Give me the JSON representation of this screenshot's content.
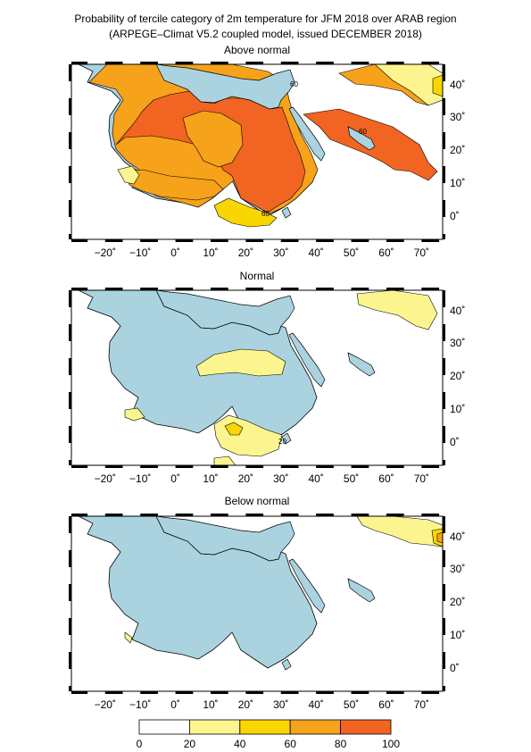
{
  "title": "Probability of tercile category of 2m temperature for JFM 2018 over ARAB region",
  "subtitle": "(ARPEGE–Climat V5.2 coupled model, issued DECEMBER  2018)",
  "lon_ticks": [
    "−20˚",
    "−10˚",
    "0˚",
    "10˚",
    "20˚",
    "30˚",
    "40˚",
    "50˚",
    "60˚",
    "70˚"
  ],
  "lat_ticks": [
    "40˚",
    "30˚",
    "20˚",
    "10˚",
    "0˚"
  ],
  "colors": {
    "ocean": "#aad3df",
    "land": "#ffffff",
    "c20_40": "#fcf58f",
    "c40_60": "#f9d600",
    "c60_80": "#f7a21b",
    "c80_100": "#f26422"
  },
  "panels": [
    {
      "name": "above-normal",
      "title": "Above normal",
      "contour_labels": [
        "60",
        "60",
        "60"
      ]
    },
    {
      "name": "normal",
      "title": "Normal",
      "contour_labels": [
        "20"
      ]
    },
    {
      "name": "below-normal",
      "title": "Below normal",
      "contour_labels": []
    }
  ],
  "colorbar": {
    "ticks": [
      "0",
      "20",
      "40",
      "60",
      "80",
      "100"
    ],
    "bins": [
      {
        "from": 0,
        "to": 20,
        "color": "#ffffff"
      },
      {
        "from": 20,
        "to": 40,
        "color": "#fcf58f"
      },
      {
        "from": 40,
        "to": 60,
        "color": "#f9d600"
      },
      {
        "from": 60,
        "to": 80,
        "color": "#f7a21b"
      },
      {
        "from": 80,
        "to": 100,
        "color": "#f26422"
      }
    ]
  }
}
